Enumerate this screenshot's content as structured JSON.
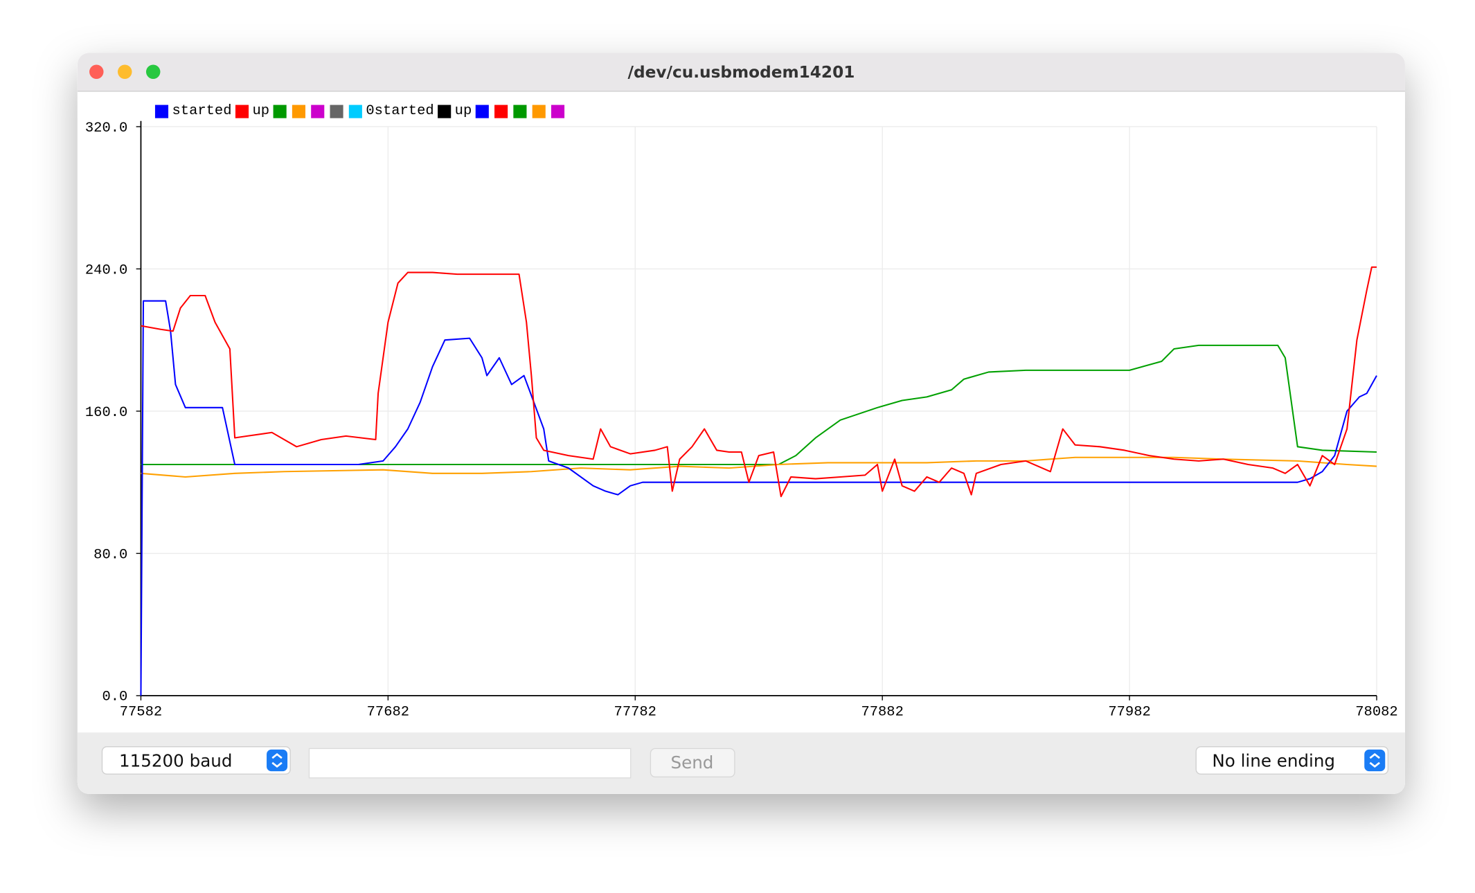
{
  "window": {
    "title": "/dev/cu.usbmodem14201"
  },
  "chart_data": {
    "type": "line",
    "legend": [
      {
        "label": "started",
        "color": "#0000ff"
      },
      {
        "label": "up",
        "color": "#ff0000"
      },
      {
        "color": "#009900"
      },
      {
        "color": "#ff9900"
      },
      {
        "color": "#cc00cc"
      },
      {
        "color": "#666666"
      },
      {
        "label": "0started",
        "color": "#00ccff"
      },
      {
        "label": "up",
        "color": "#000000"
      },
      {
        "color": "#0000ff"
      },
      {
        "color": "#ff0000"
      },
      {
        "color": "#009900"
      },
      {
        "color": "#ff9900"
      },
      {
        "color": "#cc00cc"
      }
    ],
    "xlim": [
      77582,
      78082
    ],
    "xticks": [
      77582,
      77682,
      77782,
      77882,
      77982,
      78082
    ],
    "ylim": [
      0,
      320
    ],
    "yticks": [
      {
        "value": 0,
        "label": "0.0"
      },
      {
        "value": 80,
        "label": "80.0"
      },
      {
        "value": 160,
        "label": "160.0"
      },
      {
        "value": 240,
        "label": "240.0"
      },
      {
        "value": 320,
        "label": "320.0"
      }
    ],
    "grid": true,
    "series": [
      {
        "color": "#00a000",
        "x": [
          77582,
          77600,
          77650,
          77700,
          77750,
          77800,
          77840,
          77847,
          77855,
          77865,
          77880,
          77890,
          77900,
          77910,
          77915,
          77925,
          77940,
          77960,
          77982,
          77995,
          78000,
          78010,
          78030,
          78042,
          78045,
          78050,
          78060,
          78082
        ],
        "values": [
          130,
          130,
          130,
          130,
          130,
          130,
          130,
          135,
          145,
          155,
          162,
          166,
          168,
          172,
          178,
          182,
          183,
          183,
          183,
          188,
          195,
          197,
          197,
          197,
          190,
          140,
          138,
          137
        ]
      },
      {
        "color": "#ffa000",
        "x": [
          77582,
          77600,
          77620,
          77640,
          77680,
          77700,
          77720,
          77740,
          77760,
          77780,
          77800,
          77820,
          77840,
          77860,
          77880,
          77900,
          77920,
          77940,
          77960,
          77980,
          78000,
          78020,
          78050,
          78070,
          78082
        ],
        "values": [
          125,
          123,
          125,
          126,
          127,
          125,
          125,
          126,
          128,
          127,
          129,
          128,
          130,
          131,
          131,
          131,
          132,
          132,
          134,
          134,
          134,
          133,
          132,
          130,
          129
        ]
      },
      {
        "name": "started",
        "color": "#0000ff",
        "x": [
          77582,
          77583,
          77592,
          77594,
          77596,
          77600,
          77615,
          77620,
          77670,
          77680,
          77685,
          77690,
          77695,
          77700,
          77705,
          77715,
          77720,
          77722,
          77727,
          77732,
          77737,
          77745,
          77747,
          77755,
          77765,
          77770,
          77775,
          77780,
          77785,
          77900,
          78050,
          78055,
          78060,
          78065,
          78070,
          78075,
          78078,
          78082
        ],
        "values": [
          0,
          222,
          222,
          205,
          175,
          162,
          162,
          130,
          130,
          132,
          140,
          150,
          165,
          185,
          200,
          201,
          190,
          180,
          190,
          175,
          180,
          150,
          132,
          128,
          118,
          115,
          113,
          118,
          120,
          120,
          120,
          122,
          126,
          135,
          160,
          168,
          170,
          180
        ]
      },
      {
        "name": "up",
        "color": "#ff0000",
        "x": [
          77582,
          77590,
          77595,
          77598,
          77602,
          77608,
          77612,
          77618,
          77620,
          77625,
          77635,
          77645,
          77655,
          77665,
          77677,
          77678,
          77682,
          77686,
          77690,
          77700,
          77710,
          77720,
          77735,
          77738,
          77740,
          77742,
          77745,
          77755,
          77765,
          77768,
          77772,
          77780,
          77790,
          77795,
          77797,
          77800,
          77805,
          77810,
          77815,
          77820,
          77825,
          77828,
          77832,
          77838,
          77841,
          77845,
          77855,
          77865,
          77875,
          77880,
          77882,
          77887,
          77890,
          77895,
          77900,
          77905,
          77910,
          77915,
          77918,
          77920,
          77930,
          77940,
          77950,
          77955,
          77960,
          77970,
          77980,
          77990,
          78000,
          78010,
          78020,
          78030,
          78040,
          78045,
          78050,
          78055,
          78060,
          78065,
          78070,
          78074,
          78078,
          78080,
          78082
        ],
        "values": [
          208,
          206,
          205,
          218,
          225,
          225,
          210,
          195,
          145,
          146,
          148,
          140,
          144,
          146,
          144,
          170,
          210,
          232,
          238,
          238,
          237,
          237,
          237,
          210,
          180,
          145,
          138,
          135,
          133,
          150,
          140,
          136,
          138,
          140,
          115,
          133,
          140,
          150,
          138,
          137,
          137,
          120,
          135,
          137,
          112,
          123,
          122,
          123,
          124,
          130,
          115,
          133,
          118,
          115,
          123,
          120,
          128,
          125,
          113,
          125,
          130,
          132,
          126,
          150,
          141,
          140,
          138,
          135,
          133,
          132,
          133,
          130,
          128,
          125,
          130,
          118,
          135,
          130,
          150,
          200,
          228,
          241,
          241
        ]
      }
    ]
  },
  "controls": {
    "baud": "115200 baud",
    "send": "Send",
    "line_ending": "No line ending"
  }
}
